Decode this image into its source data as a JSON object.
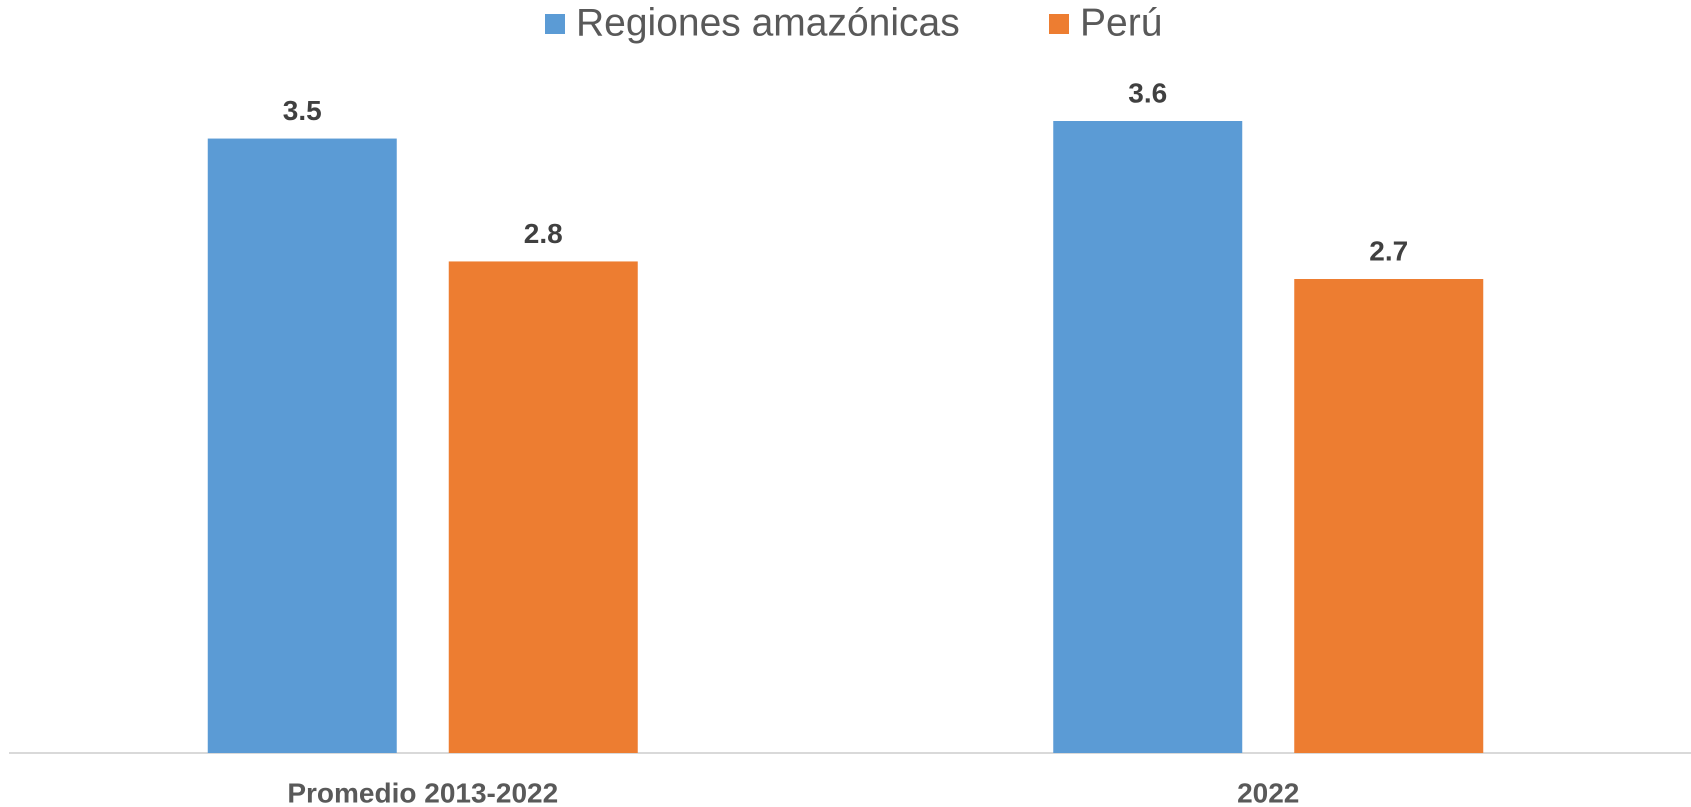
{
  "chart_data": {
    "type": "bar",
    "categories": [
      "Promedio 2013-2022",
      "2022"
    ],
    "series": [
      {
        "name": "Regiones amazónicas",
        "color": "#5b9bd5",
        "values": [
          3.5,
          3.6
        ]
      },
      {
        "name": "Perú",
        "color": "#ed7d31",
        "values": [
          2.8,
          2.7
        ]
      }
    ],
    "legend": "top"
  }
}
